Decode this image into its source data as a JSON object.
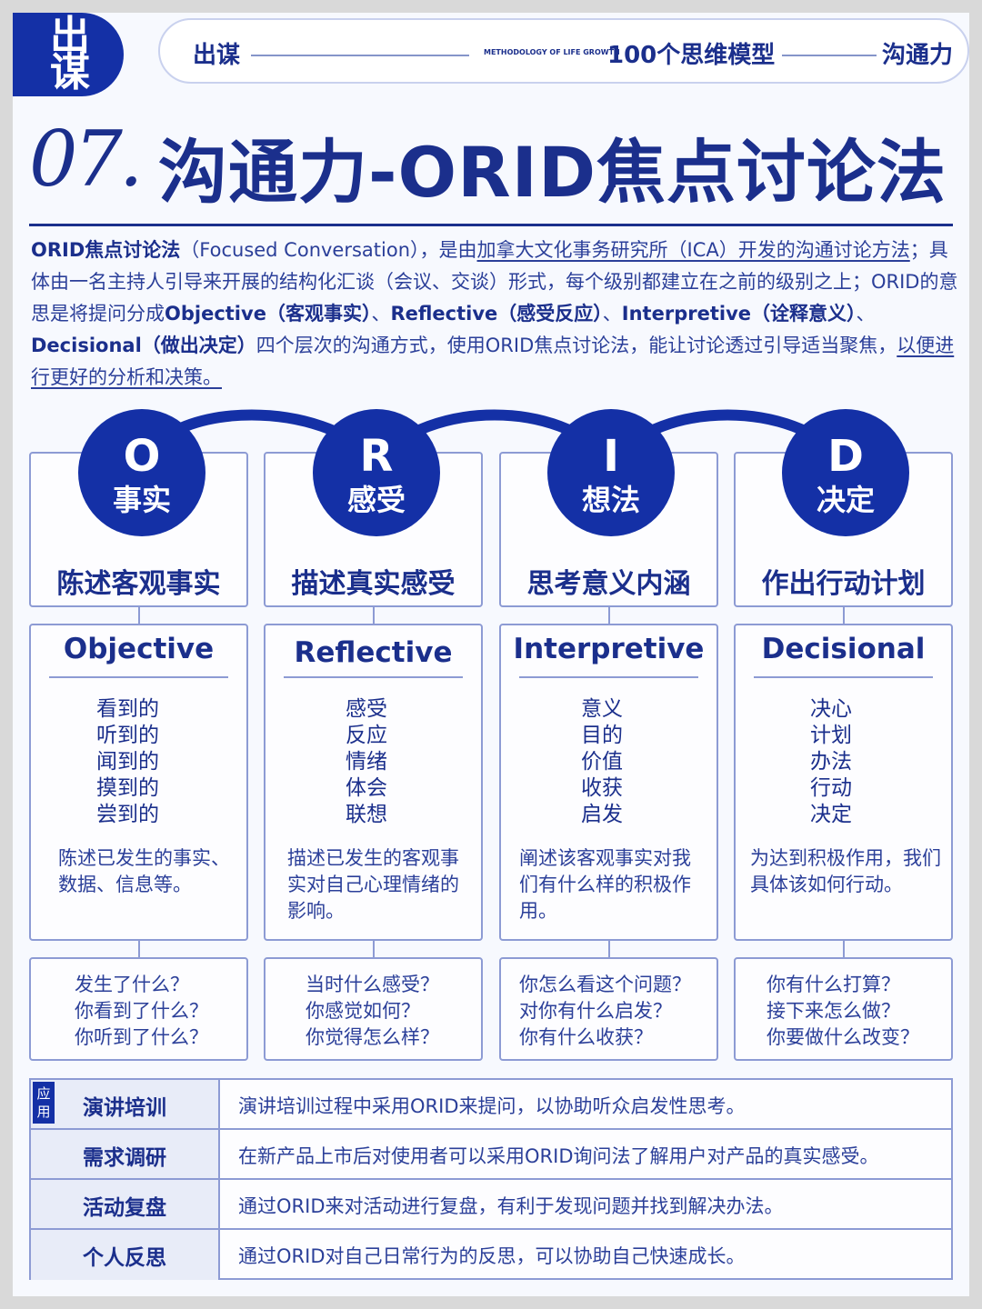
{
  "header": {
    "logo_top": "出",
    "logo_bottom": "谋",
    "left": "出谋",
    "methodology": "METHODOLOGY OF LIFE GROWTH",
    "center": "100个思维模型",
    "right": "沟通力"
  },
  "title": {
    "number": "07.",
    "text": "沟通力-ORID焦点讨论法"
  },
  "intro": {
    "p1_bold": "ORID焦点讨论法",
    "p1_a": "（Focused Conversation），是由",
    "p1_u": "加拿大文化事务研究所（ICA）开发的沟通讨论方法",
    "p1_b": "；具体由一名主持人引导来开展的结构化汇谈（会议、交谈）形式，每个级别都建立在之前的级别之上；ORID的意思是将提问分成",
    "o_bold": "Objective（客观事实）",
    "sep1": "、",
    "r_bold": "Reflective（感受反应）",
    "sep2": "、",
    "i_bold": "Interpretive（诠释意义）",
    "sep3": "、",
    "d_bold": "Decisional（做出决定）",
    "p1_c": "四个层次的沟通方式，使用ORID焦点讨论法，能让讨论透过引导适当聚焦，",
    "p1_u2": "以便进行更好的分析和决策。"
  },
  "steps": [
    {
      "letter": "O",
      "word": "事实",
      "subtitle": "陈述客观事实",
      "title": "Objective",
      "keywords": [
        "看到的",
        "听到的",
        "闻到的",
        "摸到的",
        "尝到的"
      ],
      "desc": "陈述已发生的事实、数据、信息等。",
      "questions": [
        "发生了什么？",
        "你看到了什么？",
        "你听到了什么？"
      ]
    },
    {
      "letter": "R",
      "word": "感受",
      "subtitle": "描述真实感受",
      "title": "Reflective",
      "keywords": [
        "感受",
        "反应",
        "情绪",
        "体会",
        "联想"
      ],
      "desc": "描述已发生的客观事实对自己心理情绪的影响。",
      "questions": [
        "当时什么感受？",
        "你感觉如何？",
        "你觉得怎么样？"
      ]
    },
    {
      "letter": "I",
      "word": "想法",
      "subtitle": "思考意义内涵",
      "title": "Interpretive",
      "keywords": [
        "意义",
        "目的",
        "价值",
        "收获",
        "启发"
      ],
      "desc": "阐述该客观事实对我们有什么样的积极作用。",
      "questions": [
        "你怎么看这个问题？",
        "对你有什么启发？",
        "你有什么收获？"
      ]
    },
    {
      "letter": "D",
      "word": "决定",
      "subtitle": "作出行动计划",
      "title": "Decisional",
      "keywords": [
        "决心",
        "计划",
        "办法",
        "行动",
        "决定"
      ],
      "desc": "为达到积极作用，我们具体该如何行动。",
      "questions": [
        "你有什么打算？",
        "接下来怎么做？",
        "你要做什么改变？"
      ]
    }
  ],
  "applications": {
    "tag": "应用",
    "rows": [
      {
        "label": "演讲培训",
        "text": "演讲培训过程中采用ORID来提问，以协助听众启发性思考。"
      },
      {
        "label": "需求调研",
        "text": "在新产品上市后对使用者可以采用ORID询问法了解用户对产品的真实感受。"
      },
      {
        "label": "活动复盘",
        "text": "通过ORID来对活动进行复盘，有利于发现问题并找到解决办法。"
      },
      {
        "label": "个人反思",
        "text": "通过ORID对自己日常行为的反思，可以协助自己快速成长。"
      }
    ]
  },
  "colors": {
    "primary": "#1430a6",
    "text": "#1b2f8c",
    "border": "#8d9bd4"
  }
}
